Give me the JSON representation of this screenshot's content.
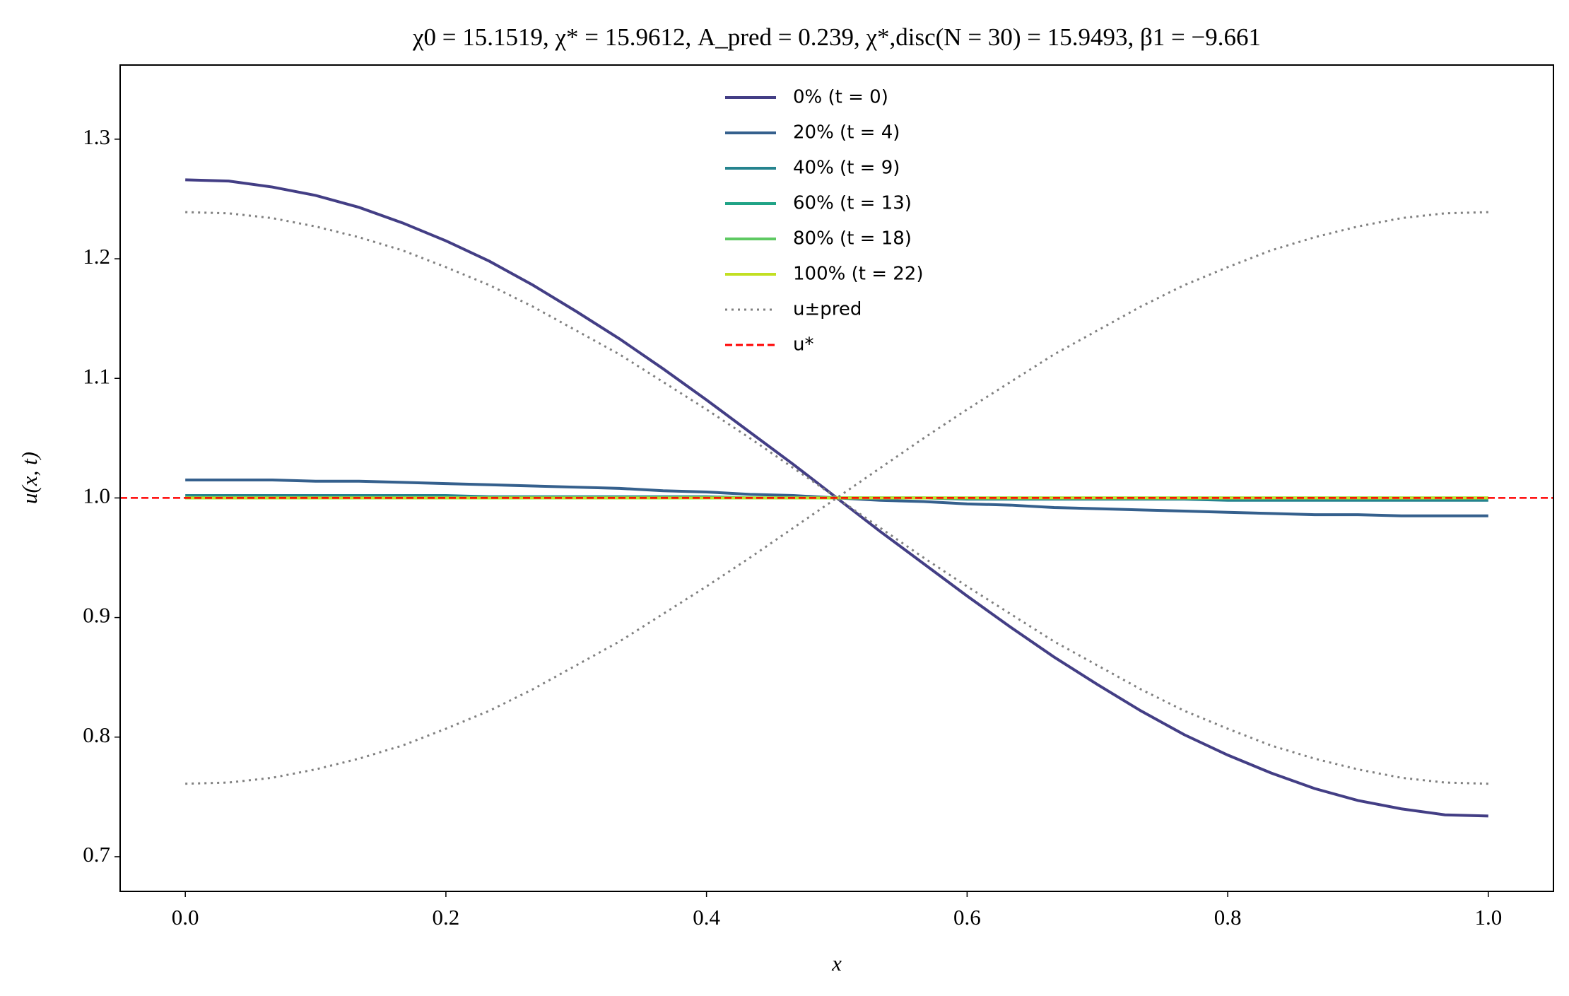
{
  "chart_data": {
    "type": "line",
    "title": "χ0 = 15.1519,  χ* = 15.9612,  A_pred = 0.239,  χ*,disc(N = 30) = 15.9493,  β1 = −9.661",
    "x_label": "x",
    "y_label": "u(x, t)",
    "x": [
      0,
      0.0333,
      0.0667,
      0.1,
      0.1333,
      0.1667,
      0.2,
      0.2333,
      0.2667,
      0.3,
      0.3333,
      0.3667,
      0.4,
      0.4333,
      0.4667,
      0.5,
      0.5333,
      0.5667,
      0.6,
      0.6333,
      0.6667,
      0.7,
      0.7333,
      0.7667,
      0.8,
      0.8333,
      0.8667,
      0.9,
      0.9333,
      0.9667,
      1
    ],
    "series": [
      {
        "name": "0% (t = 0)",
        "color": "#433e85",
        "style": "solid",
        "values": [
          1.266,
          1.265,
          1.26,
          1.253,
          1.243,
          1.23,
          1.215,
          1.198,
          1.178,
          1.156,
          1.133,
          1.108,
          1.082,
          1.055,
          1.028,
          1.0,
          0.972,
          0.945,
          0.918,
          0.892,
          0.867,
          0.844,
          0.822,
          0.802,
          0.785,
          0.77,
          0.757,
          0.747,
          0.74,
          0.735,
          0.734
        ]
      },
      {
        "name": "20% (t = 4)",
        "color": "#35608d",
        "style": "solid",
        "values": [
          1.015,
          1.015,
          1.015,
          1.014,
          1.014,
          1.013,
          1.012,
          1.011,
          1.01,
          1.009,
          1.008,
          1.006,
          1.005,
          1.003,
          1.002,
          1.0,
          0.998,
          0.997,
          0.995,
          0.994,
          0.992,
          0.991,
          0.99,
          0.989,
          0.988,
          0.987,
          0.986,
          0.986,
          0.985,
          0.985,
          0.985
        ]
      },
      {
        "name": "40% (t = 9)",
        "color": "#25838e",
        "style": "solid",
        "values": [
          1.002,
          1.002,
          1.002,
          1.002,
          1.002,
          1.002,
          1.002,
          1.001,
          1.001,
          1.001,
          1.001,
          1.001,
          1.001,
          1.0,
          1.0,
          1.0,
          1.0,
          1.0,
          0.999,
          0.999,
          0.999,
          0.999,
          0.999,
          0.999,
          0.998,
          0.998,
          0.998,
          0.998,
          0.998,
          0.998,
          0.998
        ]
      },
      {
        "name": "60% (t = 13)",
        "color": "#20a386",
        "style": "solid",
        "values": [
          1,
          1,
          1,
          1,
          1,
          1,
          1,
          1,
          1,
          1,
          1,
          1,
          1,
          1,
          1,
          1,
          1,
          1,
          1,
          1,
          1,
          1,
          1,
          1,
          1,
          1,
          1,
          1,
          1,
          1,
          1
        ]
      },
      {
        "name": "80% (t = 18)",
        "color": "#5ec962",
        "style": "solid",
        "values": [
          1,
          1,
          1,
          1,
          1,
          1,
          1,
          1,
          1,
          1,
          1,
          1,
          1,
          1,
          1,
          1,
          1,
          1,
          1,
          1,
          1,
          1,
          1,
          1,
          1,
          1,
          1,
          1,
          1,
          1,
          1
        ]
      },
      {
        "name": "100% (t = 22)",
        "color": "#c2df23",
        "style": "solid",
        "values": [
          1,
          1,
          1,
          1,
          1,
          1,
          1,
          1,
          1,
          1,
          1,
          1,
          1,
          1,
          1,
          1,
          1,
          1,
          1,
          1,
          1,
          1,
          1,
          1,
          1,
          1,
          1,
          1,
          1,
          1,
          1
        ]
      },
      {
        "name": "u±pred",
        "color": "#808080",
        "style": "dotted",
        "values": [
          1.239,
          1.238,
          1.234,
          1.227,
          1.218,
          1.207,
          1.193,
          1.178,
          1.16,
          1.14,
          1.12,
          1.097,
          1.074,
          1.05,
          1.025,
          1.0,
          0.975,
          0.95,
          0.926,
          0.903,
          0.88,
          0.86,
          0.84,
          0.822,
          0.807,
          0.793,
          0.782,
          0.773,
          0.766,
          0.762,
          0.761
        ]
      },
      {
        "name": "u±pred",
        "color": "#808080",
        "style": "dotted",
        "legend": false,
        "values": [
          0.761,
          0.762,
          0.766,
          0.773,
          0.782,
          0.793,
          0.807,
          0.822,
          0.84,
          0.86,
          0.88,
          0.903,
          0.926,
          0.95,
          0.975,
          1.0,
          1.025,
          1.05,
          1.074,
          1.097,
          1.12,
          1.14,
          1.16,
          1.178,
          1.193,
          1.207,
          1.218,
          1.227,
          1.234,
          1.238,
          1.239
        ]
      }
    ],
    "hline": {
      "name": "u*",
      "color": "#ff0000",
      "style": "dashed",
      "value": 1
    },
    "xlim": [
      -0.05,
      1.05
    ],
    "xticks": [
      {
        "value": 0,
        "label": "0.0"
      },
      0.2,
      0.4,
      0.6,
      0.8,
      {
        "value": 1,
        "label": "1.0"
      }
    ],
    "ylim": [
      0.671,
      1.362
    ],
    "yticks": [
      0.7,
      0.8,
      0.9,
      {
        "value": 1,
        "label": "1.0"
      },
      1.1,
      1.2,
      1.3
    ],
    "legend": "upper center",
    "grid": false
  }
}
